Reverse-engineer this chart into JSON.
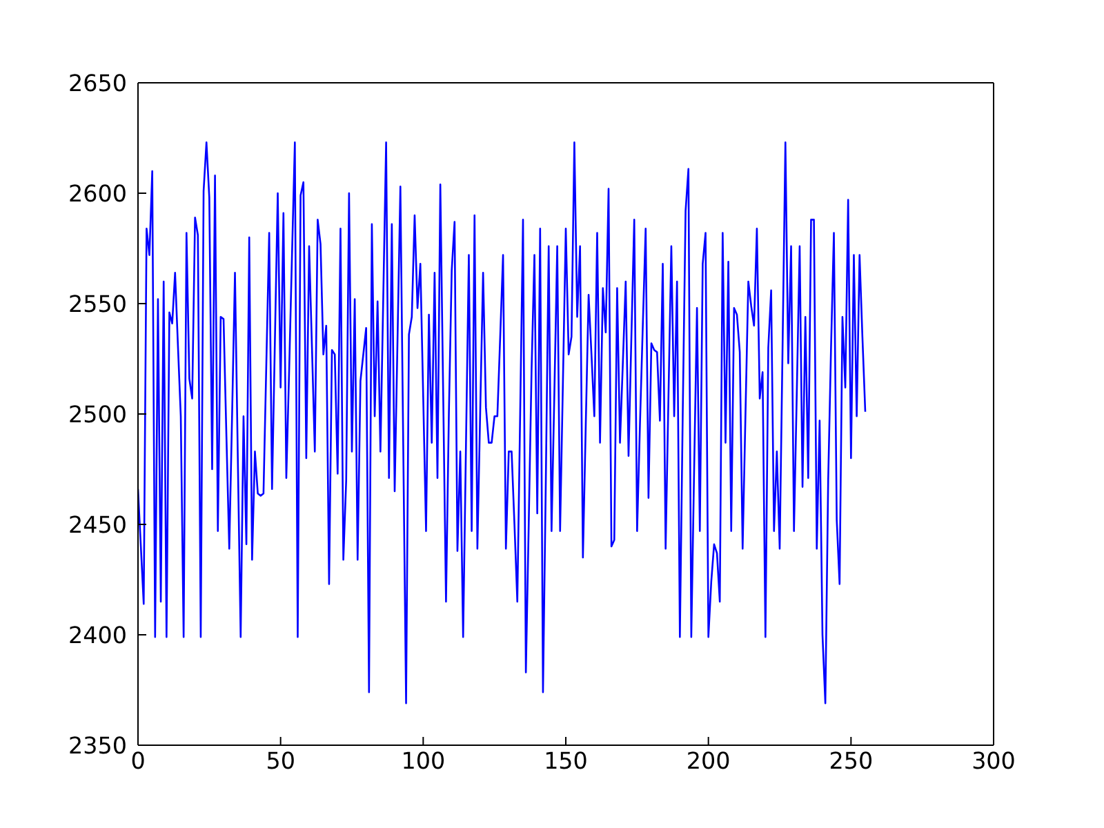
{
  "chart_data": {
    "type": "line",
    "color": "#0000ff",
    "line_style": "solid",
    "x": [
      0,
      1,
      2,
      3,
      4,
      5,
      6,
      7,
      8,
      9,
      10,
      11,
      12,
      13,
      14,
      15,
      16,
      17,
      18,
      19,
      20,
      21,
      22,
      23,
      24,
      25,
      26,
      27,
      28,
      29,
      30,
      31,
      32,
      33,
      34,
      35,
      36,
      37,
      38,
      39,
      40,
      41,
      42,
      43,
      44,
      45,
      46,
      47,
      48,
      49,
      50,
      51,
      52,
      53,
      54,
      55,
      56,
      57,
      58,
      59,
      60,
      61,
      62,
      63,
      64,
      65,
      66,
      67,
      68,
      69,
      70,
      71,
      72,
      73,
      74,
      75,
      76,
      77,
      78,
      79,
      80,
      81,
      82,
      83,
      84,
      85,
      86,
      87,
      88,
      89,
      90,
      91,
      92,
      93,
      94,
      95,
      96,
      97,
      98,
      99,
      100,
      101,
      102,
      103,
      104,
      105,
      106,
      107,
      108,
      109,
      110,
      111,
      112,
      113,
      114,
      115,
      116,
      117,
      118,
      119,
      120,
      121,
      122,
      123,
      124,
      125,
      126,
      127,
      128,
      129,
      130,
      131,
      132,
      133,
      134,
      135,
      136,
      137,
      138,
      139,
      140,
      141,
      142,
      143,
      144,
      145,
      146,
      147,
      148,
      149,
      150,
      151,
      152,
      153,
      154,
      155,
      156,
      157,
      158,
      159,
      160,
      161,
      162,
      163,
      164,
      165,
      166,
      167,
      168,
      169,
      170,
      171,
      172,
      173,
      174,
      175,
      176,
      177,
      178,
      179,
      180,
      181,
      182,
      183,
      184,
      185,
      186,
      187,
      188,
      189,
      190,
      191,
      192,
      193,
      194,
      195,
      196,
      197,
      198,
      199,
      200,
      201,
      202,
      203,
      204,
      205,
      206,
      207,
      208,
      209,
      210,
      211,
      212,
      213,
      214,
      215,
      216,
      217,
      218,
      219,
      220,
      221,
      222,
      223,
      224,
      225,
      226,
      227,
      228,
      229,
      230,
      231,
      232,
      233,
      234,
      235,
      236,
      237,
      238,
      239,
      240,
      241,
      242,
      243,
      244,
      245,
      246,
      247,
      248,
      249,
      250,
      251,
      252,
      253,
      254,
      255
    ],
    "values": [
      2466,
      2440,
      2414,
      2584,
      2572,
      2610,
      2399,
      2552,
      2415,
      2560,
      2399,
      2546,
      2541,
      2564,
      2531,
      2499,
      2399,
      2582,
      2516,
      2507,
      2589,
      2581,
      2399,
      2601,
      2623,
      2598,
      2475,
      2608,
      2447,
      2544,
      2543,
      2490,
      2439,
      2500,
      2564,
      2480,
      2399,
      2499,
      2441,
      2580,
      2434,
      2483,
      2464,
      2463,
      2464,
      2523,
      2582,
      2466,
      2533,
      2600,
      2512,
      2591,
      2471,
      2520,
      2572,
      2623,
      2399,
      2599,
      2605,
      2480,
      2576,
      2530,
      2483,
      2588,
      2577,
      2527,
      2540,
      2423,
      2529,
      2527,
      2473,
      2584,
      2434,
      2470,
      2600,
      2483,
      2552,
      2434,
      2515,
      2527,
      2539,
      2374,
      2586,
      2499,
      2551,
      2483,
      2553,
      2623,
      2471,
      2586,
      2465,
      2534,
      2603,
      2486,
      2369,
      2536,
      2544,
      2590,
      2548,
      2568,
      2508,
      2447,
      2545,
      2487,
      2564,
      2471,
      2604,
      2510,
      2415,
      2500,
      2565,
      2587,
      2438,
      2483,
      2399,
      2486,
      2572,
      2447,
      2590,
      2439,
      2502,
      2564,
      2503,
      2487,
      2487,
      2499,
      2499,
      2535,
      2572,
      2439,
      2483,
      2483,
      2450,
      2415,
      2500,
      2588,
      2383,
      2450,
      2520,
      2572,
      2455,
      2584,
      2374,
      2470,
      2576,
      2447,
      2510,
      2576,
      2447,
      2515,
      2584,
      2527,
      2535,
      2623,
      2544,
      2576,
      2435,
      2495,
      2554,
      2527,
      2499,
      2582,
      2487,
      2557,
      2537,
      2602,
      2440,
      2443,
      2557,
      2487,
      2523,
      2560,
      2481,
      2535,
      2588,
      2447,
      2495,
      2540,
      2584,
      2462,
      2532,
      2529,
      2528,
      2497,
      2568,
      2439,
      2508,
      2576,
      2499,
      2560,
      2399,
      2500,
      2592,
      2611,
      2399,
      2475,
      2548,
      2447,
      2568,
      2582,
      2399,
      2424,
      2441,
      2437,
      2415,
      2582,
      2487,
      2569,
      2447,
      2548,
      2545,
      2528,
      2439,
      2500,
      2560,
      2549,
      2540,
      2584,
      2507,
      2519,
      2399,
      2530,
      2556,
      2447,
      2483,
      2439,
      2530,
      2623,
      2523,
      2576,
      2447,
      2510,
      2576,
      2467,
      2544,
      2471,
      2588,
      2588,
      2439,
      2497,
      2400,
      2369,
      2470,
      2530,
      2582,
      2452,
      2423,
      2544,
      2512,
      2597,
      2480,
      2572,
      2499,
      2572,
      2535,
      2501
    ],
    "xlim": [
      0,
      300
    ],
    "xticks": [
      0,
      50,
      100,
      150,
      200,
      250,
      300
    ],
    "ylim": [
      2350,
      2650
    ],
    "yticks": [
      2350,
      2400,
      2450,
      2500,
      2550,
      2600,
      2650
    ]
  }
}
